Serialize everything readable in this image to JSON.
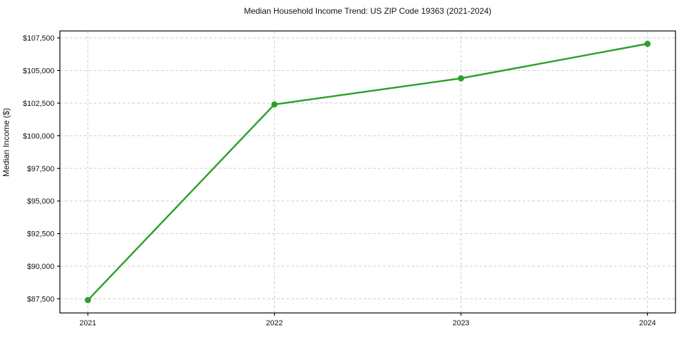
{
  "figure": {
    "title": "Median Household Income Trend: US ZIP Code 19363 (2021-2024)",
    "ylabel": "Median Income ($)"
  },
  "chart_data": {
    "type": "line",
    "title": "Median Household Income Trend: US ZIP Code 19363 (2021-2024)",
    "xlabel": "",
    "ylabel": "Median Income ($)",
    "x": [
      2021,
      2022,
      2023,
      2024
    ],
    "x_tick_labels": [
      "2021",
      "2022",
      "2023",
      "2024"
    ],
    "series": [
      {
        "name": "Median Household Income",
        "values": [
          87400,
          102400,
          104400,
          107050
        ]
      }
    ],
    "y_ticks": [
      87500,
      90000,
      92500,
      95000,
      97500,
      100000,
      102500,
      105000,
      107500
    ],
    "y_tick_labels": [
      "$87,500",
      "$90,000",
      "$92,500",
      "$95,000",
      "$97,500",
      "$100,000",
      "$102,500",
      "$105,000",
      "$107,500"
    ],
    "xlim": [
      2020.85,
      2024.15
    ],
    "ylim": [
      86417,
      108033
    ],
    "grid": true,
    "grid_style": "dashed",
    "grid_color": "#c9c9c9",
    "line_color": "#2ca02c",
    "marker_color": "#2ca02c",
    "axis_color": "#000000",
    "text_color": "#111111",
    "legend_position": "none",
    "marker": "circle"
  }
}
